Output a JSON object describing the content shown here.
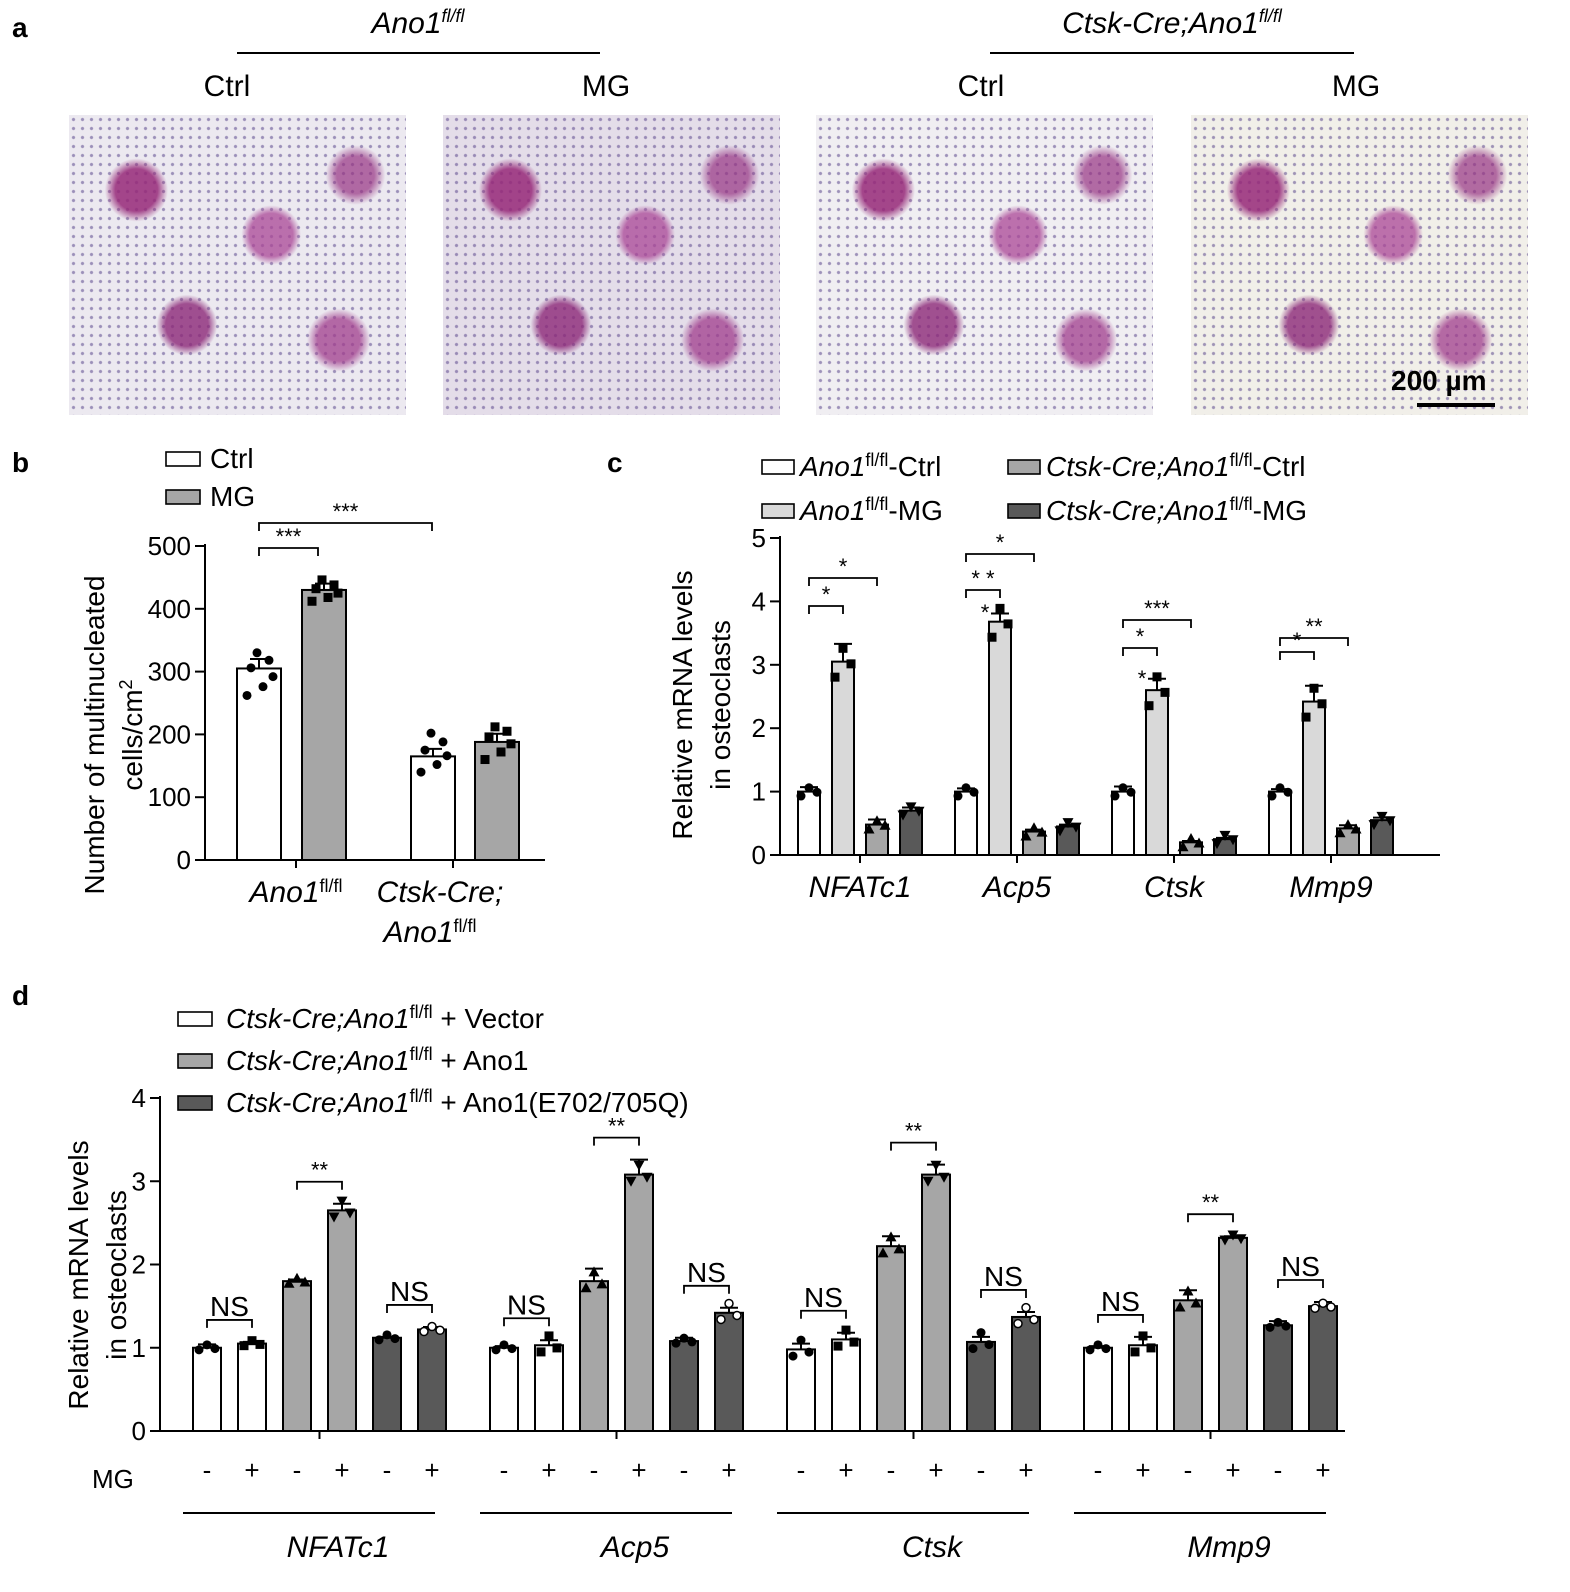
{
  "panel_labels": {
    "a": "a",
    "b": "b",
    "c": "c",
    "d": "d"
  },
  "panel_a": {
    "group_titles": [
      "Ano1",
      "Ctsk-Cre;Ano1"
    ],
    "group_title_superscript": "fl/fl",
    "condition_labels": [
      "Ctrl",
      "MG",
      "Ctrl",
      "MG"
    ],
    "scale_bar_label": "200 µm"
  },
  "colors": {
    "white": "#ffffff",
    "light_gray": "#d9d9d9",
    "mid_gray": "#a6a6a6",
    "dark_gray": "#595959",
    "axis": "#000000"
  },
  "chart_data": [
    {
      "type": "bar",
      "panel": "b",
      "ylabel_lines": [
        "Number  of multinucleated",
        "cells/cm"
      ],
      "ylabel_superscript": "2",
      "ylim": [
        0,
        500
      ],
      "yticks": [
        "0",
        "100",
        "200",
        "300",
        "400",
        "500"
      ],
      "legend": [
        "Ctrl",
        "MG"
      ],
      "group_labels": [
        [
          "Ano1"
        ],
        [
          "Ctsk-Cre;",
          "Ano1"
        ]
      ],
      "group_label_superscript": "fl/fl",
      "series": [
        {
          "name": "Ctrl",
          "values": [
            305,
            165
          ],
          "errors": [
            15,
            12
          ]
        },
        {
          "name": "MG",
          "values": [
            430,
            188
          ],
          "errors": [
            10,
            13
          ]
        }
      ],
      "significance": [
        {
          "text": "***",
          "from": "Ano1 Ctrl",
          "to": "Ano1 MG"
        },
        {
          "text": "***",
          "from": "Ano1 Ctrl",
          "to": "Ctsk-Cre;Ano1 Ctrl"
        }
      ]
    },
    {
      "type": "bar",
      "panel": "c",
      "ylabel_lines": [
        "Relative mRNA levels",
        "in osteoclasts"
      ],
      "ylim": [
        0,
        5
      ],
      "yticks": [
        "0",
        "1",
        "2",
        "3",
        "4",
        "5"
      ],
      "categories": [
        "NFATc1",
        "Acp5",
        "Ctsk",
        "Mmp9"
      ],
      "legend": [
        {
          "base": "Ano1",
          "sup": "fl/fl",
          "suffix": "-Ctrl"
        },
        {
          "base": "Ctsk-Cre;Ano1",
          "sup": "fl/fl",
          "suffix": "-Ctrl"
        },
        {
          "base": "Ano1",
          "sup": "fl/fl",
          "suffix": "-MG"
        },
        {
          "base": "Ctsk-Cre;Ano1",
          "sup": "fl/fl",
          "suffix": "-MG"
        }
      ],
      "series": [
        {
          "values": [
            1.0,
            1.0,
            1.0,
            1.0
          ],
          "errors": [
            0.07,
            0.05,
            0.08,
            0.04
          ]
        },
        {
          "values": [
            3.05,
            3.68,
            2.6,
            2.42
          ],
          "errors": [
            0.28,
            0.13,
            0.18,
            0.25
          ]
        },
        {
          "values": [
            0.48,
            0.37,
            0.2,
            0.42
          ],
          "errors": [
            0.08,
            0.03,
            0.02,
            0.05
          ]
        },
        {
          "values": [
            0.7,
            0.45,
            0.25,
            0.55
          ],
          "errors": [
            0.05,
            0.03,
            0.02,
            0.04
          ]
        }
      ],
      "significance": [
        {
          "text": "*",
          "category": "NFATc1",
          "from": 0,
          "to": 1
        },
        {
          "text": "*",
          "category": "NFATc1",
          "from": 0,
          "to": 2
        },
        {
          "text": "* *",
          "category": "Acp5",
          "from": 0,
          "to": 1
        },
        {
          "text": "*",
          "category": "Acp5",
          "from": 0,
          "to": 2
        },
        {
          "text": "*",
          "category": "Ctsk",
          "from": 0,
          "to": 1
        },
        {
          "text": "***",
          "category": "Ctsk",
          "from": 0,
          "to": 2
        },
        {
          "text": "*",
          "category": "Mmp9",
          "from": 0,
          "to": 1
        },
        {
          "text": "**",
          "category": "Mmp9",
          "from": 0,
          "to": 2
        }
      ],
      "stray_marks": [
        {
          "text": "*",
          "category": "Acp5"
        },
        {
          "text": "*",
          "category": "Ctsk"
        }
      ]
    },
    {
      "type": "bar",
      "panel": "d",
      "ylabel_lines": [
        "Relative mRNA levels",
        "in osteoclasts"
      ],
      "ylim": [
        0,
        4
      ],
      "yticks": [
        "0",
        "1",
        "2",
        "3",
        "4"
      ],
      "categories": [
        "NFATc1",
        "Acp5",
        "Ctsk",
        "Mmp9"
      ],
      "mg_row_label": "MG",
      "mg_signs": [
        "-",
        "+",
        "-",
        "+",
        "-",
        "+"
      ],
      "legend": [
        {
          "base": "Ctsk-Cre;Ano1",
          "sup": "fl/fl",
          "suffix": " + Vector"
        },
        {
          "base": "Ctsk-Cre;Ano1",
          "sup": "fl/fl",
          "suffix": " + Ano1"
        },
        {
          "base": "Ctsk-Cre;Ano1",
          "sup": "fl/fl",
          "suffix": " + Ano1(E702/705Q)"
        }
      ],
      "series": [
        {
          "values": [
            [
              1.0,
              1.05
            ],
            [
              1.0,
              1.03
            ],
            [
              0.98,
              1.1
            ],
            [
              1.0,
              1.03
            ]
          ],
          "errors": [
            [
              0.04,
              0.02
            ],
            [
              0.02,
              0.06
            ],
            [
              0.07,
              0.08
            ],
            [
              0.02,
              0.1
            ]
          ]
        },
        {
          "values": [
            [
              1.8,
              2.65
            ],
            [
              1.8,
              3.08
            ],
            [
              2.22,
              3.08
            ],
            [
              1.57,
              2.32
            ]
          ],
          "errors": [
            [
              0.02,
              0.08
            ],
            [
              0.15,
              0.18
            ],
            [
              0.12,
              0.12
            ],
            [
              0.12,
              0.02
            ]
          ]
        },
        {
          "values": [
            [
              1.12,
              1.22
            ],
            [
              1.08,
              1.42
            ],
            [
              1.07,
              1.37
            ],
            [
              1.27,
              1.5
            ]
          ],
          "errors": [
            [
              0.01,
              0.03
            ],
            [
              0.04,
              0.06
            ],
            [
              0.06,
              0.06
            ],
            [
              0.05,
              0.05
            ]
          ]
        }
      ],
      "significance_label_pairs": [
        [
          "NS",
          "**",
          "NS"
        ],
        [
          "NS",
          "**",
          "NS"
        ],
        [
          "NS",
          "**",
          "NS"
        ],
        [
          "NS",
          "**",
          "NS"
        ]
      ]
    }
  ]
}
